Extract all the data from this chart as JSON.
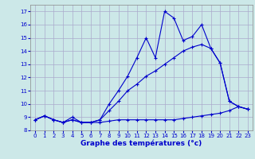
{
  "xlabel": "Graphe des températures (°c)",
  "bg_color": "#cce8e8",
  "grid_color": "#aaaacc",
  "line_color": "#0000cc",
  "xlim": [
    -0.5,
    23.5
  ],
  "ylim": [
    8,
    17.5
  ],
  "xticks": [
    0,
    1,
    2,
    3,
    4,
    5,
    6,
    7,
    8,
    9,
    10,
    11,
    12,
    13,
    14,
    15,
    16,
    17,
    18,
    19,
    20,
    21,
    22,
    23
  ],
  "yticks": [
    8,
    9,
    10,
    11,
    12,
    13,
    14,
    15,
    16,
    17
  ],
  "line1_x": [
    0,
    1,
    2,
    3,
    4,
    5,
    6,
    7,
    8,
    9,
    10,
    11,
    12,
    13,
    14,
    15,
    16,
    17,
    18,
    19,
    20,
    21,
    22,
    23
  ],
  "line1_y": [
    8.8,
    9.1,
    8.8,
    8.6,
    8.8,
    8.6,
    8.6,
    8.6,
    8.7,
    8.8,
    8.8,
    8.8,
    8.8,
    8.8,
    8.8,
    8.8,
    8.9,
    9.0,
    9.1,
    9.2,
    9.3,
    9.5,
    9.8,
    9.6
  ],
  "line2_x": [
    0,
    1,
    2,
    3,
    4,
    5,
    6,
    7,
    8,
    9,
    10,
    11,
    12,
    13,
    14,
    15,
    16,
    17,
    18,
    19,
    20,
    21,
    22,
    23
  ],
  "line2_y": [
    8.8,
    9.1,
    8.8,
    8.6,
    8.8,
    8.6,
    8.6,
    8.8,
    9.5,
    10.2,
    11.0,
    11.5,
    12.1,
    12.5,
    13.0,
    13.5,
    14.0,
    14.3,
    14.5,
    14.2,
    13.1,
    10.2,
    9.8,
    9.6
  ],
  "line3_x": [
    0,
    1,
    2,
    3,
    4,
    5,
    6,
    7,
    8,
    9,
    10,
    11,
    12,
    13,
    14,
    15,
    16,
    17,
    18,
    19,
    20,
    21,
    22,
    23
  ],
  "line3_y": [
    8.8,
    9.1,
    8.8,
    8.6,
    9.0,
    8.6,
    8.6,
    8.8,
    10.0,
    11.0,
    12.1,
    13.5,
    15.0,
    13.5,
    17.0,
    16.5,
    14.8,
    15.1,
    16.0,
    14.2,
    13.1,
    10.2,
    9.8,
    9.6
  ]
}
